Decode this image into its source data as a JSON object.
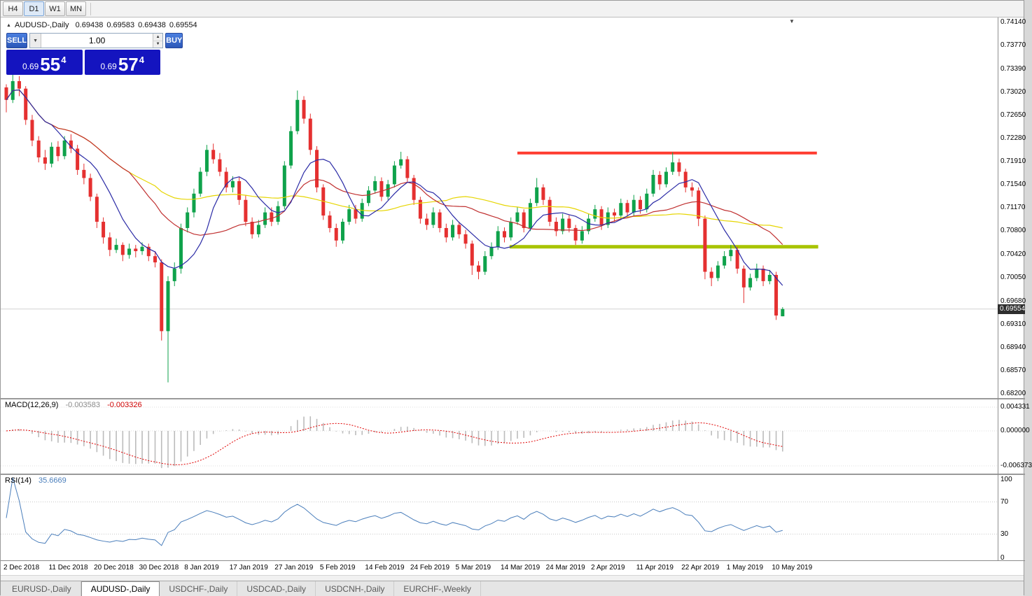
{
  "toolbar": {
    "timeframes": [
      {
        "label": "H4",
        "active": false
      },
      {
        "label": "D1",
        "active": true
      },
      {
        "label": "W1",
        "active": false
      },
      {
        "label": "MN",
        "active": false
      }
    ]
  },
  "icons": {
    "collapse": "▲",
    "dropdown": "▼",
    "spin_up": "▲",
    "spin_down": "▼",
    "autoscroll": "▼"
  },
  "chart_header": {
    "symbol": "AUDUSD-,Daily",
    "open": "0.69438",
    "high": "0.69583",
    "low": "0.69438",
    "close": "0.69554"
  },
  "trade_panel": {
    "sell_label": "SELL",
    "buy_label": "BUY",
    "volume": "1.00",
    "sell_price": {
      "prefix": "0.69",
      "big": "55",
      "sup": "4"
    },
    "buy_price": {
      "prefix": "0.69",
      "big": "57",
      "sup": "4"
    }
  },
  "price_axis": [
    "0.74140",
    "0.73770",
    "0.73390",
    "0.73020",
    "0.72650",
    "0.72280",
    "0.71910",
    "0.71540",
    "0.71170",
    "0.70800",
    "0.70420",
    "0.70050",
    "0.69680",
    "0.69310",
    "0.68940",
    "0.68570",
    "0.68200"
  ],
  "bid_tag": "0.69554",
  "macd_panel": {
    "label": "MACD(12,26,9)",
    "value_main": "-0.003583",
    "value_signal": "-0.003326",
    "axis": [
      "0.004331",
      "0.000000",
      "-0.006373"
    ]
  },
  "rsi_panel": {
    "label": "RSI(14)",
    "value": "35.6669",
    "axis": [
      "100",
      "70",
      "30",
      "0"
    ],
    "levels": [
      70,
      30
    ]
  },
  "date_axis": [
    "2 Dec 2018",
    "11 Dec 2018",
    "20 Dec 2018",
    "30 Dec 2018",
    "8 Jan 2019",
    "17 Jan 2019",
    "27 Jan 2019",
    "5 Feb 2019",
    "14 Feb 2019",
    "24 Feb 2019",
    "5 Mar 2019",
    "14 Mar 2019",
    "24 Mar 2019",
    "2 Apr 2019",
    "11 Apr 2019",
    "22 Apr 2019",
    "1 May 2019",
    "10 May 2019"
  ],
  "tabs": [
    {
      "label": "EURUSD-,Daily",
      "active": false
    },
    {
      "label": "AUDUSD-,Daily",
      "active": true
    },
    {
      "label": "USDCHF-,Daily",
      "active": false
    },
    {
      "label": "USDCAD-,Daily",
      "active": false
    },
    {
      "label": "USDCNH-,Daily",
      "active": false
    },
    {
      "label": "EURCHF-,Weekly",
      "active": false
    }
  ],
  "colors": {
    "bull": "#0fa24b",
    "bear": "#e53030",
    "ma_fast": "#2b2ba6",
    "ma_mid": "#c03030",
    "ma_slow": "#e6d500",
    "resistance": "#ff3b30",
    "support": "#a8c400",
    "macd_hist": "#bcbcbc",
    "macd_signal": "#e00000",
    "rsi": "#4a7ebb",
    "bid_line": "#d4d4d4",
    "price_panel": "#1414bf",
    "trade_button": "#3a6fd8",
    "bid_tag_bg": "#2e2e2e"
  },
  "chart_data": {
    "type": "candlestick",
    "symbol": "AUDUSD",
    "timeframe": "Daily",
    "bid": 0.69554,
    "price_range": [
      0.682,
      0.7414
    ],
    "levels": [
      {
        "name": "resistance",
        "price": 0.7205,
        "from_bar": 79,
        "to_bar": 125.3,
        "color_key": "resistance",
        "width": 4
      },
      {
        "name": "support",
        "price": 0.7055,
        "from_bar": 77.8,
        "to_bar": 125.5,
        "color_key": "support",
        "width": 5
      }
    ],
    "moving_averages": [
      {
        "period": 45,
        "color_key": "ma_slow"
      },
      {
        "period": 20,
        "color_key": "ma_mid"
      },
      {
        "period": 8,
        "color_key": "ma_fast"
      }
    ],
    "indicators": {
      "macd": {
        "fast": 12,
        "slow": 26,
        "signal": 9,
        "current_main": -0.003583,
        "current_signal": -0.003326
      },
      "rsi": {
        "period": 14,
        "current": 35.6669
      }
    },
    "candles": [
      [
        0.731,
        0.7315,
        0.727,
        0.729
      ],
      [
        0.729,
        0.733,
        0.7285,
        0.732
      ],
      [
        0.732,
        0.7328,
        0.7296,
        0.7308
      ],
      [
        0.7308,
        0.7312,
        0.725,
        0.7258
      ],
      [
        0.7258,
        0.7266,
        0.7216,
        0.7225
      ],
      [
        0.7225,
        0.7232,
        0.719,
        0.7198
      ],
      [
        0.7198,
        0.721,
        0.7178,
        0.7188
      ],
      [
        0.7188,
        0.7222,
        0.7182,
        0.7215
      ],
      [
        0.7215,
        0.7224,
        0.7192,
        0.72
      ],
      [
        0.72,
        0.7232,
        0.7195,
        0.7225
      ],
      [
        0.7225,
        0.7235,
        0.7205,
        0.7212
      ],
      [
        0.7212,
        0.7218,
        0.717,
        0.7178
      ],
      [
        0.7178,
        0.7188,
        0.7155,
        0.7165
      ],
      [
        0.7165,
        0.7172,
        0.7128,
        0.7135
      ],
      [
        0.7135,
        0.714,
        0.7085,
        0.7095
      ],
      [
        0.7095,
        0.7102,
        0.706,
        0.707
      ],
      [
        0.707,
        0.7078,
        0.704,
        0.705
      ],
      [
        0.705,
        0.7068,
        0.7045,
        0.7058
      ],
      [
        0.7058,
        0.7062,
        0.7032,
        0.7042
      ],
      [
        0.7042,
        0.706,
        0.7036,
        0.7052
      ],
      [
        0.7052,
        0.7058,
        0.7038,
        0.7048
      ],
      [
        0.7048,
        0.7062,
        0.7042,
        0.7055
      ],
      [
        0.7055,
        0.706,
        0.7032,
        0.704
      ],
      [
        0.704,
        0.7048,
        0.7022,
        0.703
      ],
      [
        0.703,
        0.7035,
        0.6905,
        0.692
      ],
      [
        0.692,
        0.7008,
        0.6838,
        0.7
      ],
      [
        0.7,
        0.703,
        0.6992,
        0.702
      ],
      [
        0.702,
        0.7092,
        0.7012,
        0.7085
      ],
      [
        0.7085,
        0.7118,
        0.7078,
        0.711
      ],
      [
        0.711,
        0.7148,
        0.7102,
        0.714
      ],
      [
        0.714,
        0.7182,
        0.7135,
        0.7175
      ],
      [
        0.7175,
        0.7218,
        0.7168,
        0.721
      ],
      [
        0.721,
        0.722,
        0.7188,
        0.7195
      ],
      [
        0.7195,
        0.7205,
        0.7168,
        0.7175
      ],
      [
        0.7175,
        0.7182,
        0.7142,
        0.715
      ],
      [
        0.715,
        0.7168,
        0.7142,
        0.716
      ],
      [
        0.716,
        0.7166,
        0.7122,
        0.713
      ],
      [
        0.713,
        0.7138,
        0.7088,
        0.7095
      ],
      [
        0.7095,
        0.7102,
        0.7068,
        0.7075
      ],
      [
        0.7075,
        0.7098,
        0.707,
        0.709
      ],
      [
        0.709,
        0.7118,
        0.7085,
        0.711
      ],
      [
        0.711,
        0.7118,
        0.7088,
        0.7095
      ],
      [
        0.7095,
        0.7128,
        0.709,
        0.712
      ],
      [
        0.712,
        0.7192,
        0.7115,
        0.7185
      ],
      [
        0.7185,
        0.7248,
        0.718,
        0.724
      ],
      [
        0.724,
        0.7305,
        0.7235,
        0.729
      ],
      [
        0.729,
        0.7296,
        0.7252,
        0.726
      ],
      [
        0.726,
        0.7268,
        0.7202,
        0.721
      ],
      [
        0.721,
        0.7216,
        0.7142,
        0.715
      ],
      [
        0.715,
        0.7155,
        0.7098,
        0.7105
      ],
      [
        0.7105,
        0.7112,
        0.7078,
        0.7085
      ],
      [
        0.7085,
        0.7092,
        0.7055,
        0.7065
      ],
      [
        0.7065,
        0.71,
        0.706,
        0.7095
      ],
      [
        0.7095,
        0.7122,
        0.709,
        0.7115
      ],
      [
        0.7115,
        0.7122,
        0.7092,
        0.71
      ],
      [
        0.71,
        0.7132,
        0.7095,
        0.7125
      ],
      [
        0.7125,
        0.7152,
        0.712,
        0.7145
      ],
      [
        0.7145,
        0.7168,
        0.714,
        0.716
      ],
      [
        0.716,
        0.7166,
        0.7128,
        0.7135
      ],
      [
        0.7135,
        0.7162,
        0.713,
        0.7155
      ],
      [
        0.7155,
        0.7192,
        0.715,
        0.7185
      ],
      [
        0.7185,
        0.7207,
        0.718,
        0.7195
      ],
      [
        0.7195,
        0.72,
        0.7158,
        0.7165
      ],
      [
        0.7165,
        0.717,
        0.7122,
        0.713
      ],
      [
        0.713,
        0.7135,
        0.7092,
        0.71
      ],
      [
        0.71,
        0.7108,
        0.7082,
        0.709
      ],
      [
        0.709,
        0.7118,
        0.7085,
        0.711
      ],
      [
        0.711,
        0.7115,
        0.7078,
        0.7085
      ],
      [
        0.7085,
        0.7092,
        0.7062,
        0.707
      ],
      [
        0.707,
        0.7098,
        0.7065,
        0.709
      ],
      [
        0.709,
        0.7095,
        0.7068,
        0.7075
      ],
      [
        0.7075,
        0.7082,
        0.7052,
        0.706
      ],
      [
        0.706,
        0.7065,
        0.701,
        0.7025
      ],
      [
        0.7025,
        0.7032,
        0.7003,
        0.7015
      ],
      [
        0.7015,
        0.7048,
        0.701,
        0.704
      ],
      [
        0.704,
        0.7062,
        0.7035,
        0.7055
      ],
      [
        0.7055,
        0.7088,
        0.705,
        0.708
      ],
      [
        0.708,
        0.7086,
        0.7062,
        0.707
      ],
      [
        0.707,
        0.7102,
        0.7065,
        0.7095
      ],
      [
        0.7095,
        0.7118,
        0.709,
        0.711
      ],
      [
        0.711,
        0.7115,
        0.7078,
        0.7085
      ],
      [
        0.7085,
        0.7132,
        0.708,
        0.7125
      ],
      [
        0.7125,
        0.7165,
        0.712,
        0.715
      ],
      [
        0.715,
        0.7155,
        0.7122,
        0.713
      ],
      [
        0.713,
        0.7135,
        0.7088,
        0.7095
      ],
      [
        0.7095,
        0.7102,
        0.7072,
        0.708
      ],
      [
        0.708,
        0.7108,
        0.7075,
        0.71
      ],
      [
        0.71,
        0.7106,
        0.7078,
        0.7085
      ],
      [
        0.7085,
        0.709,
        0.7058,
        0.7065
      ],
      [
        0.7065,
        0.7088,
        0.706,
        0.708
      ],
      [
        0.708,
        0.7108,
        0.7075,
        0.71
      ],
      [
        0.71,
        0.7122,
        0.7095,
        0.7115
      ],
      [
        0.7115,
        0.712,
        0.7082,
        0.709
      ],
      [
        0.709,
        0.7118,
        0.7085,
        0.711
      ],
      [
        0.711,
        0.7116,
        0.7095,
        0.7105
      ],
      [
        0.7105,
        0.7132,
        0.71,
        0.7125
      ],
      [
        0.7125,
        0.713,
        0.7102,
        0.711
      ],
      [
        0.711,
        0.7138,
        0.7105,
        0.713
      ],
      [
        0.713,
        0.7136,
        0.7108,
        0.7115
      ],
      [
        0.7115,
        0.7148,
        0.711,
        0.714
      ],
      [
        0.714,
        0.7178,
        0.7135,
        0.717
      ],
      [
        0.717,
        0.7176,
        0.7146,
        0.7155
      ],
      [
        0.7155,
        0.7182,
        0.715,
        0.7175
      ],
      [
        0.7175,
        0.7206,
        0.717,
        0.719
      ],
      [
        0.719,
        0.7196,
        0.7168,
        0.7175
      ],
      [
        0.7175,
        0.718,
        0.7142,
        0.715
      ],
      [
        0.715,
        0.7158,
        0.7135,
        0.7145
      ],
      [
        0.7145,
        0.715,
        0.7088,
        0.71
      ],
      [
        0.71,
        0.7105,
        0.7003,
        0.7015
      ],
      [
        0.7015,
        0.7022,
        0.6992,
        0.7005
      ],
      [
        0.7005,
        0.7032,
        0.7,
        0.7025
      ],
      [
        0.7025,
        0.7048,
        0.702,
        0.704
      ],
      [
        0.704,
        0.7058,
        0.7032,
        0.705
      ],
      [
        0.705,
        0.7055,
        0.7012,
        0.702
      ],
      [
        0.702,
        0.7025,
        0.6965,
        0.699
      ],
      [
        0.699,
        0.7012,
        0.6985,
        0.7005
      ],
      [
        0.7005,
        0.7028,
        0.7,
        0.702
      ],
      [
        0.702,
        0.7025,
        0.6992,
        0.7
      ],
      [
        0.7,
        0.7018,
        0.6995,
        0.701
      ],
      [
        0.701,
        0.7015,
        0.6938,
        0.6945
      ],
      [
        0.69438,
        0.69583,
        0.69438,
        0.69554
      ]
    ]
  }
}
